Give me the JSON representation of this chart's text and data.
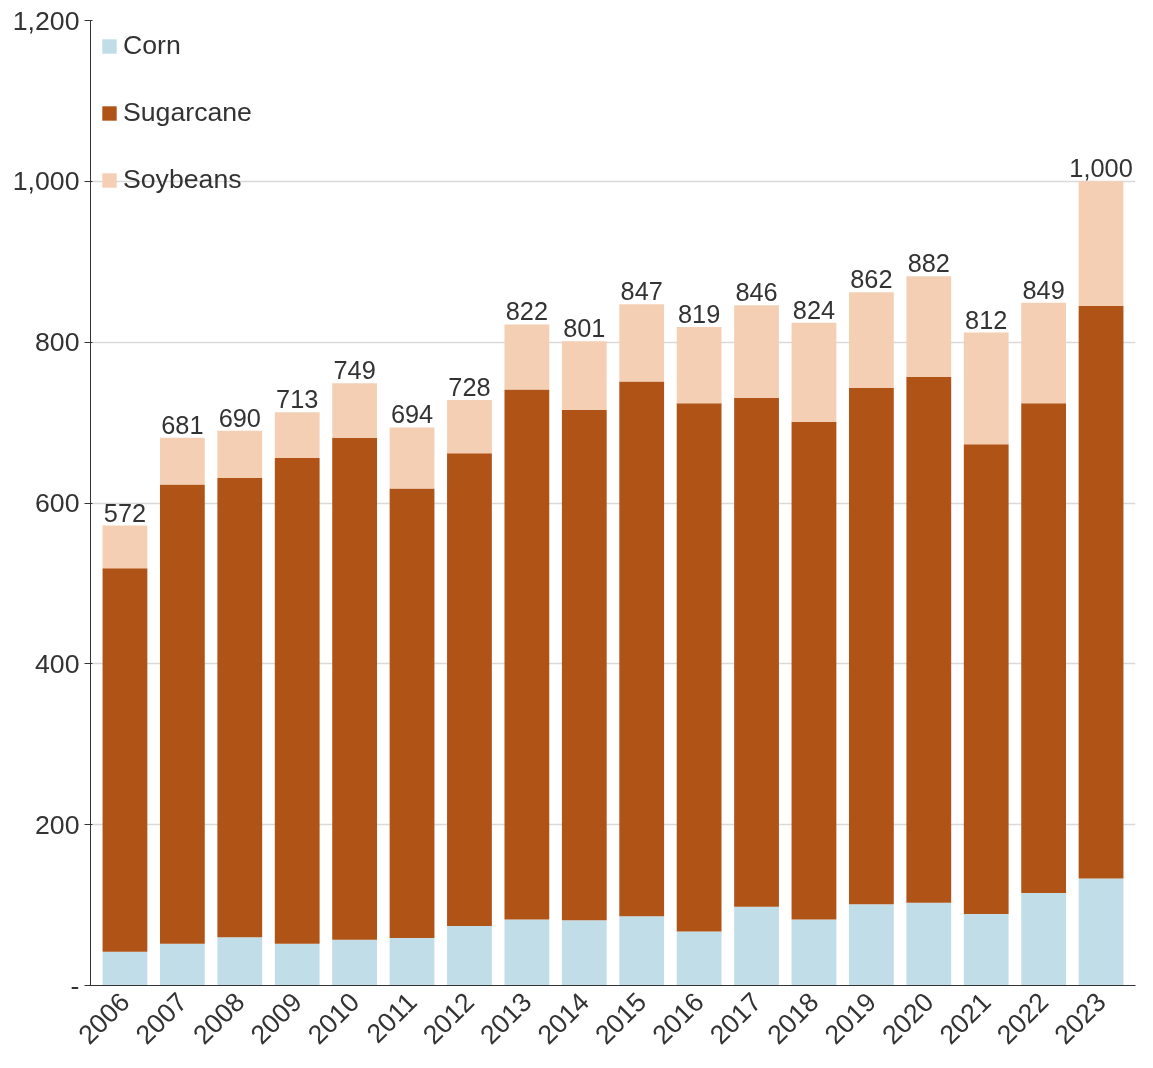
{
  "chart_data": {
    "type": "bar",
    "stacked": true,
    "categories": [
      "2006",
      "2007",
      "2008",
      "2009",
      "2010",
      "2011",
      "2012",
      "2013",
      "2014",
      "2015",
      "2016",
      "2017",
      "2018",
      "2019",
      "2020",
      "2021",
      "2022",
      "2023"
    ],
    "series": [
      {
        "name": "Corn",
        "color": "#c1dde7",
        "values": [
          42,
          52,
          60,
          52,
          57,
          59,
          74,
          82,
          81,
          86,
          67,
          98,
          82,
          101,
          103,
          89,
          115,
          133
        ]
      },
      {
        "name": "Sugarcane",
        "color": "#b05316",
        "values": [
          477,
          571,
          571,
          604,
          624,
          559,
          588,
          659,
          635,
          665,
          657,
          633,
          619,
          642,
          654,
          584,
          609,
          712
        ]
      },
      {
        "name": "Soybeans",
        "color": "#f5cfb3",
        "values": [
          53,
          58,
          59,
          57,
          68,
          76,
          66,
          81,
          85,
          96,
          95,
          115,
          123,
          119,
          125,
          139,
          125,
          155
        ]
      }
    ],
    "totals": [
      "572",
      "681",
      "690",
      "713",
      "749",
      "694",
      "728",
      "822",
      "801",
      "847",
      "819",
      "846",
      "824",
      "862",
      "882",
      "812",
      "849",
      "1,000"
    ],
    "ylim": [
      0,
      1200
    ],
    "yticks": [
      {
        "value": 0,
        "label": "-"
      },
      {
        "value": 200,
        "label": "200"
      },
      {
        "value": 400,
        "label": "400"
      },
      {
        "value": 600,
        "label": "600"
      },
      {
        "value": 800,
        "label": "800"
      },
      {
        "value": 1000,
        "label": "1,000"
      },
      {
        "value": 1200,
        "label": "1,200"
      }
    ],
    "grid": "y",
    "legend": "top left"
  }
}
